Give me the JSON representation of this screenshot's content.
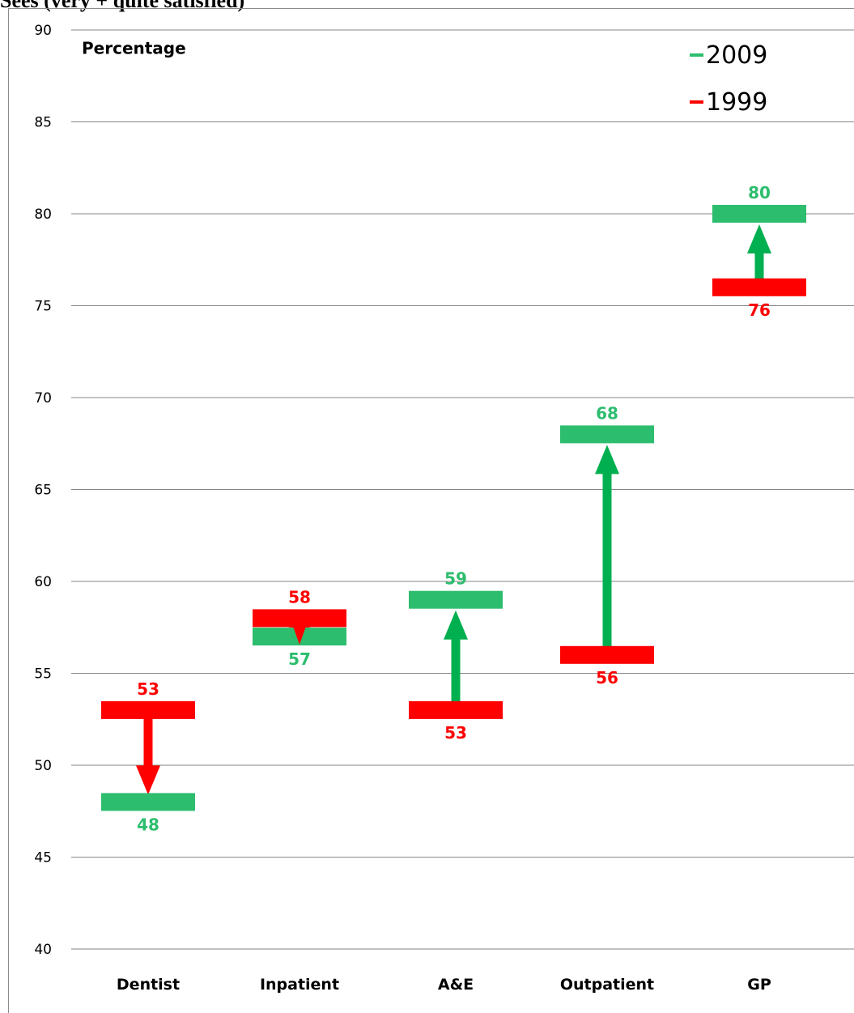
{
  "caption": "Sees (very + quite satisfied)",
  "chart_data": {
    "type": "dumbbell",
    "ylabel": "Percentage",
    "ylim": [
      40,
      90
    ],
    "yticks": [
      40,
      45,
      50,
      55,
      60,
      65,
      70,
      75,
      80,
      85,
      90
    ],
    "grid": true,
    "legend_position": "top-right",
    "categories": [
      "Dentist",
      "Inpatient",
      "A&E",
      "Outpatient",
      "GP"
    ],
    "series": [
      {
        "name": "1999",
        "color": "#ff0000",
        "values": [
          53,
          58,
          53,
          56,
          76
        ]
      },
      {
        "name": "2009",
        "color": "#2dbd6e",
        "values": [
          48,
          57,
          59,
          68,
          80
        ]
      }
    ],
    "arrow_colors": {
      "increase": "#00b050",
      "decrease": "#ff0000"
    }
  }
}
